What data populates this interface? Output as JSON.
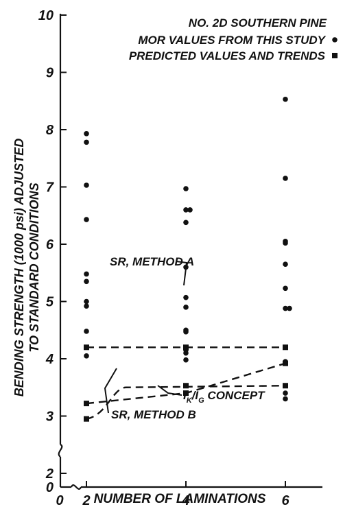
{
  "chart_data": {
    "type": "scatter",
    "xlabel": "NUMBER OF LAMINATIONS",
    "ylabel_line1": "BENDING STRENGTH (1000 psi) ADJUSTED",
    "ylabel_line2": "TO STANDARD CONDITIONS",
    "xlim": [
      0,
      6
    ],
    "ylim": [
      0,
      10
    ],
    "x_ticks": [
      0,
      2,
      4,
      6
    ],
    "y_ticks": [
      0,
      2,
      3,
      4,
      5,
      6,
      7,
      8,
      9,
      10
    ],
    "axis_breaks": true,
    "legend": {
      "position": "top-right",
      "title": "NO. 2D SOUTHERN PINE",
      "entries": [
        {
          "label": "MOR VALUES FROM THIS STUDY",
          "marker": "circle"
        },
        {
          "label": "PREDICTED VALUES AND TRENDS",
          "marker": "square"
        }
      ]
    },
    "series": [
      {
        "name": "MOR VALUES FROM THIS STUDY",
        "marker": "circle",
        "points": [
          [
            2,
            7.93
          ],
          [
            2,
            7.78
          ],
          [
            2,
            7.03
          ],
          [
            2,
            6.43
          ],
          [
            2,
            5.48
          ],
          [
            2,
            5.35
          ],
          [
            2,
            5.0
          ],
          [
            2,
            4.92
          ],
          [
            2,
            4.48
          ],
          [
            2,
            4.05
          ],
          [
            4,
            6.97
          ],
          [
            4,
            6.6
          ],
          [
            4,
            6.6
          ],
          [
            4,
            6.38
          ],
          [
            4,
            5.6
          ],
          [
            4,
            5.07
          ],
          [
            4,
            4.9
          ],
          [
            4,
            4.5
          ],
          [
            4,
            4.47
          ],
          [
            4,
            4.15
          ],
          [
            4,
            4.1
          ],
          [
            4,
            3.98
          ],
          [
            6,
            8.53
          ],
          [
            6,
            7.15
          ],
          [
            6,
            6.05
          ],
          [
            6,
            6.02
          ],
          [
            6,
            5.65
          ],
          [
            6,
            5.23
          ],
          [
            6,
            4.88
          ],
          [
            6,
            4.88
          ],
          [
            6,
            3.95
          ],
          [
            6,
            3.4
          ],
          [
            6,
            3.3
          ]
        ]
      },
      {
        "name": "SR, METHOD A",
        "marker": "square",
        "style": "dashed",
        "points": [
          [
            2,
            4.2
          ],
          [
            4,
            4.2
          ],
          [
            6,
            4.2
          ]
        ]
      },
      {
        "name": "SR, METHOD B",
        "marker": "square",
        "style": "dashed",
        "points": [
          [
            2,
            2.95
          ],
          [
            2.8,
            3.5
          ],
          [
            4,
            3.53
          ],
          [
            6,
            3.53
          ]
        ]
      },
      {
        "name": "I_K / I_G CONCEPT",
        "marker": "square",
        "style": "dashed",
        "points": [
          [
            2,
            3.22
          ],
          [
            4,
            3.4
          ],
          [
            6,
            3.92
          ]
        ]
      }
    ],
    "annotations": [
      {
        "text": "SR, METHOD A",
        "series": "SR, METHOD A"
      },
      {
        "text": "I",
        "sub": "K",
        "text2": "/I",
        "sub2": "G",
        "text3": " CONCEPT",
        "series": "I_K / I_G CONCEPT"
      },
      {
        "text": "SR, METHOD B",
        "series": "SR, METHOD B"
      }
    ]
  }
}
